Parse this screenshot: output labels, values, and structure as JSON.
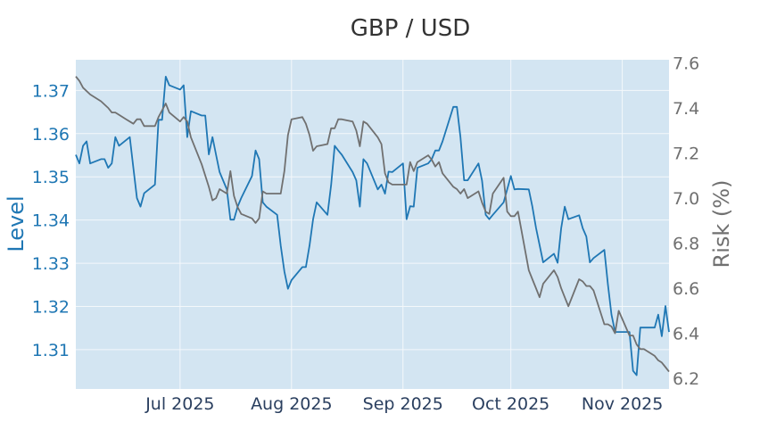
{
  "chart_data": {
    "type": "line",
    "title": "GBP / USD",
    "xlabel": "",
    "colors": {
      "plot_bg": "#d3e5f2",
      "grid": "#f4f8fb",
      "level": "#1f77b4",
      "risk": "#707070",
      "x_tick": "#2a3f5f"
    },
    "x_ticks": [
      "2025-07-01",
      "2025-08-01",
      "2025-09-01",
      "2025-10-01",
      "2025-11-01"
    ],
    "x_tick_labels": [
      "Jul 2025",
      "Aug 2025",
      "Sep 2025",
      "Oct 2025",
      "Nov 2025"
    ],
    "xlim": [
      "2025-06-02",
      "2025-11-14"
    ],
    "y_left": {
      "label": "Level",
      "ticks": [
        1.31,
        1.32,
        1.33,
        1.34,
        1.35,
        1.36,
        1.37
      ],
      "tick_labels": [
        "1.31",
        "1.32",
        "1.33",
        "1.34",
        "1.35",
        "1.36",
        "1.37"
      ],
      "range": [
        1.3009,
        1.3771
      ]
    },
    "y_right": {
      "label": "Risk (%)",
      "ticks": [
        6.2,
        6.4,
        6.6,
        6.8,
        7.0,
        7.2,
        7.4,
        7.6
      ],
      "tick_labels": [
        "6.2",
        "6.4",
        "6.6",
        "6.8",
        "7.0",
        "7.2",
        "7.4",
        "7.6"
      ],
      "range": [
        6.153,
        7.614
      ]
    },
    "series": [
      {
        "name": "Level",
        "axis": "left",
        "color": "#1f77b4",
        "points": [
          [
            "2025-06-02",
            1.3551
          ],
          [
            "2025-06-03",
            1.3531
          ],
          [
            "2025-06-04",
            1.3572
          ],
          [
            "2025-06-05",
            1.3582
          ],
          [
            "2025-06-06",
            1.3531
          ],
          [
            "2025-06-09",
            1.3541
          ],
          [
            "2025-06-10",
            1.3541
          ],
          [
            "2025-06-11",
            1.3521
          ],
          [
            "2025-06-12",
            1.3531
          ],
          [
            "2025-06-13",
            1.3592
          ],
          [
            "2025-06-14",
            1.3572
          ],
          [
            "2025-06-17",
            1.3592
          ],
          [
            "2025-06-18",
            1.3521
          ],
          [
            "2025-06-19",
            1.3451
          ],
          [
            "2025-06-20",
            1.3431
          ],
          [
            "2025-06-21",
            1.3462
          ],
          [
            "2025-06-24",
            1.3482
          ],
          [
            "2025-06-25",
            1.3632
          ],
          [
            "2025-06-26",
            1.3632
          ],
          [
            "2025-06-27",
            1.3732
          ],
          [
            "2025-06-28",
            1.3712
          ],
          [
            "2025-07-01",
            1.3702
          ],
          [
            "2025-07-02",
            1.3712
          ],
          [
            "2025-07-03",
            1.3592
          ],
          [
            "2025-07-04",
            1.3652
          ],
          [
            "2025-07-07",
            1.3642
          ],
          [
            "2025-07-08",
            1.3642
          ],
          [
            "2025-07-09",
            1.3552
          ],
          [
            "2025-07-10",
            1.3592
          ],
          [
            "2025-07-11",
            1.3551
          ],
          [
            "2025-07-12",
            1.3511
          ],
          [
            "2025-07-14",
            1.3471
          ],
          [
            "2025-07-15",
            1.3401
          ],
          [
            "2025-07-16",
            1.3401
          ],
          [
            "2025-07-17",
            1.3431
          ],
          [
            "2025-07-18",
            1.3451
          ],
          [
            "2025-07-21",
            1.3502
          ],
          [
            "2025-07-22",
            1.3561
          ],
          [
            "2025-07-23",
            1.3541
          ],
          [
            "2025-07-24",
            1.3441
          ],
          [
            "2025-07-25",
            1.3431
          ],
          [
            "2025-07-28",
            1.3412
          ],
          [
            "2025-07-29",
            1.3341
          ],
          [
            "2025-07-30",
            1.3281
          ],
          [
            "2025-07-31",
            1.3241
          ],
          [
            "2025-08-01",
            1.3261
          ],
          [
            "2025-08-04",
            1.3291
          ],
          [
            "2025-08-05",
            1.3291
          ],
          [
            "2025-08-06",
            1.3341
          ],
          [
            "2025-08-07",
            1.3402
          ],
          [
            "2025-08-08",
            1.3441
          ],
          [
            "2025-08-11",
            1.3412
          ],
          [
            "2025-08-12",
            1.3481
          ],
          [
            "2025-08-13",
            1.3572
          ],
          [
            "2025-08-14",
            1.3561
          ],
          [
            "2025-08-15",
            1.3551
          ],
          [
            "2025-08-18",
            1.3511
          ],
          [
            "2025-08-19",
            1.3492
          ],
          [
            "2025-08-20",
            1.3431
          ],
          [
            "2025-08-21",
            1.3541
          ],
          [
            "2025-08-22",
            1.3531
          ],
          [
            "2025-08-25",
            1.3471
          ],
          [
            "2025-08-26",
            1.3482
          ],
          [
            "2025-08-27",
            1.3461
          ],
          [
            "2025-08-28",
            1.3512
          ],
          [
            "2025-08-29",
            1.3511
          ],
          [
            "2025-09-01",
            1.3531
          ],
          [
            "2025-09-02",
            1.3402
          ],
          [
            "2025-09-03",
            1.3432
          ],
          [
            "2025-09-04",
            1.3431
          ],
          [
            "2025-09-05",
            1.3521
          ],
          [
            "2025-09-08",
            1.3531
          ],
          [
            "2025-09-09",
            1.3541
          ],
          [
            "2025-09-10",
            1.3561
          ],
          [
            "2025-09-11",
            1.3561
          ],
          [
            "2025-09-12",
            1.3582
          ],
          [
            "2025-09-15",
            1.3662
          ],
          [
            "2025-09-16",
            1.3662
          ],
          [
            "2025-09-17",
            1.3592
          ],
          [
            "2025-09-18",
            1.3492
          ],
          [
            "2025-09-19",
            1.3492
          ],
          [
            "2025-09-22",
            1.3531
          ],
          [
            "2025-09-23",
            1.3491
          ],
          [
            "2025-09-24",
            1.3412
          ],
          [
            "2025-09-25",
            1.3402
          ],
          [
            "2025-09-26",
            1.3412
          ],
          [
            "2025-09-29",
            1.3441
          ],
          [
            "2025-09-30",
            1.3471
          ],
          [
            "2025-10-01",
            1.3502
          ],
          [
            "2025-10-02",
            1.3471
          ],
          [
            "2025-10-03",
            1.3472
          ],
          [
            "2025-10-06",
            1.3471
          ],
          [
            "2025-10-07",
            1.3431
          ],
          [
            "2025-10-08",
            1.3382
          ],
          [
            "2025-10-09",
            1.3342
          ],
          [
            "2025-10-10",
            1.3302
          ],
          [
            "2025-10-13",
            1.3322
          ],
          [
            "2025-10-14",
            1.3301
          ],
          [
            "2025-10-15",
            1.3381
          ],
          [
            "2025-10-16",
            1.3431
          ],
          [
            "2025-10-17",
            1.3402
          ],
          [
            "2025-10-20",
            1.3411
          ],
          [
            "2025-10-21",
            1.3381
          ],
          [
            "2025-10-22",
            1.3362
          ],
          [
            "2025-10-23",
            1.3302
          ],
          [
            "2025-10-24",
            1.3312
          ],
          [
            "2025-10-27",
            1.3331
          ],
          [
            "2025-10-28",
            1.3251
          ],
          [
            "2025-10-29",
            1.3181
          ],
          [
            "2025-10-30",
            1.3141
          ],
          [
            "2025-10-31",
            1.3141
          ],
          [
            "2025-11-03",
            1.3141
          ],
          [
            "2025-11-04",
            1.3051
          ],
          [
            "2025-11-05",
            1.3041
          ],
          [
            "2025-11-06",
            1.3151
          ],
          [
            "2025-11-07",
            1.3151
          ],
          [
            "2025-11-10",
            1.3151
          ],
          [
            "2025-11-11",
            1.3181
          ],
          [
            "2025-11-12",
            1.3131
          ],
          [
            "2025-11-13",
            1.3201
          ],
          [
            "2025-11-14",
            1.3141
          ]
        ]
      },
      {
        "name": "Risk (%)",
        "axis": "right",
        "color": "#707070",
        "points": [
          [
            "2025-06-02",
            7.54
          ],
          [
            "2025-06-03",
            7.52
          ],
          [
            "2025-06-04",
            7.49
          ],
          [
            "2025-06-06",
            7.46
          ],
          [
            "2025-06-09",
            7.43
          ],
          [
            "2025-06-11",
            7.4
          ],
          [
            "2025-06-12",
            7.38
          ],
          [
            "2025-06-13",
            7.38
          ],
          [
            "2025-06-16",
            7.35
          ],
          [
            "2025-06-18",
            7.33
          ],
          [
            "2025-06-19",
            7.35
          ],
          [
            "2025-06-20",
            7.35
          ],
          [
            "2025-06-21",
            7.32
          ],
          [
            "2025-06-24",
            7.32
          ],
          [
            "2025-06-25",
            7.36
          ],
          [
            "2025-06-27",
            7.42
          ],
          [
            "2025-06-28",
            7.38
          ],
          [
            "2025-07-01",
            7.34
          ],
          [
            "2025-07-02",
            7.36
          ],
          [
            "2025-07-03",
            7.34
          ],
          [
            "2025-07-04",
            7.27
          ],
          [
            "2025-07-07",
            7.15
          ],
          [
            "2025-07-09",
            7.05
          ],
          [
            "2025-07-10",
            6.99
          ],
          [
            "2025-07-11",
            7.0
          ],
          [
            "2025-07-12",
            7.04
          ],
          [
            "2025-07-14",
            7.02
          ],
          [
            "2025-07-15",
            7.12
          ],
          [
            "2025-07-16",
            7.01
          ],
          [
            "2025-07-17",
            6.96
          ],
          [
            "2025-07-18",
            6.93
          ],
          [
            "2025-07-21",
            6.91
          ],
          [
            "2025-07-22",
            6.89
          ],
          [
            "2025-07-23",
            6.91
          ],
          [
            "2025-07-24",
            7.03
          ],
          [
            "2025-07-25",
            7.02
          ],
          [
            "2025-07-28",
            7.02
          ],
          [
            "2025-07-29",
            7.02
          ],
          [
            "2025-07-30",
            7.12
          ],
          [
            "2025-07-31",
            7.28
          ],
          [
            "2025-08-01",
            7.35
          ],
          [
            "2025-08-04",
            7.36
          ],
          [
            "2025-08-05",
            7.33
          ],
          [
            "2025-08-06",
            7.28
          ],
          [
            "2025-08-07",
            7.21
          ],
          [
            "2025-08-08",
            7.23
          ],
          [
            "2025-08-11",
            7.24
          ],
          [
            "2025-08-12",
            7.31
          ],
          [
            "2025-08-13",
            7.31
          ],
          [
            "2025-08-14",
            7.35
          ],
          [
            "2025-08-15",
            7.35
          ],
          [
            "2025-08-18",
            7.34
          ],
          [
            "2025-08-19",
            7.3
          ],
          [
            "2025-08-20",
            7.23
          ],
          [
            "2025-08-21",
            7.34
          ],
          [
            "2025-08-22",
            7.33
          ],
          [
            "2025-08-25",
            7.27
          ],
          [
            "2025-08-26",
            7.24
          ],
          [
            "2025-08-27",
            7.11
          ],
          [
            "2025-08-28",
            7.07
          ],
          [
            "2025-08-29",
            7.06
          ],
          [
            "2025-09-02",
            7.06
          ],
          [
            "2025-09-03",
            7.16
          ],
          [
            "2025-09-04",
            7.12
          ],
          [
            "2025-09-05",
            7.16
          ],
          [
            "2025-09-08",
            7.19
          ],
          [
            "2025-09-09",
            7.17
          ],
          [
            "2025-09-10",
            7.14
          ],
          [
            "2025-09-11",
            7.16
          ],
          [
            "2025-09-12",
            7.11
          ],
          [
            "2025-09-15",
            7.05
          ],
          [
            "2025-09-16",
            7.04
          ],
          [
            "2025-09-17",
            7.02
          ],
          [
            "2025-09-18",
            7.04
          ],
          [
            "2025-09-19",
            7.0
          ],
          [
            "2025-09-22",
            7.03
          ],
          [
            "2025-09-23",
            6.98
          ],
          [
            "2025-09-24",
            6.94
          ],
          [
            "2025-09-25",
            6.93
          ],
          [
            "2025-09-26",
            7.02
          ],
          [
            "2025-09-29",
            7.09
          ],
          [
            "2025-09-30",
            6.94
          ],
          [
            "2025-10-01",
            6.92
          ],
          [
            "2025-10-02",
            6.92
          ],
          [
            "2025-10-03",
            6.94
          ],
          [
            "2025-10-06",
            6.68
          ],
          [
            "2025-10-07",
            6.64
          ],
          [
            "2025-10-08",
            6.6
          ],
          [
            "2025-10-09",
            6.56
          ],
          [
            "2025-10-10",
            6.62
          ],
          [
            "2025-10-13",
            6.68
          ],
          [
            "2025-10-14",
            6.65
          ],
          [
            "2025-10-15",
            6.6
          ],
          [
            "2025-10-16",
            6.56
          ],
          [
            "2025-10-17",
            6.52
          ],
          [
            "2025-10-20",
            6.64
          ],
          [
            "2025-10-21",
            6.63
          ],
          [
            "2025-10-22",
            6.61
          ],
          [
            "2025-10-23",
            6.61
          ],
          [
            "2025-10-24",
            6.59
          ],
          [
            "2025-10-27",
            6.44
          ],
          [
            "2025-10-28",
            6.44
          ],
          [
            "2025-10-29",
            6.43
          ],
          [
            "2025-10-30",
            6.4
          ],
          [
            "2025-10-31",
            6.5
          ],
          [
            "2025-11-03",
            6.39
          ],
          [
            "2025-11-04",
            6.39
          ],
          [
            "2025-11-05",
            6.35
          ],
          [
            "2025-11-06",
            6.33
          ],
          [
            "2025-11-07",
            6.33
          ],
          [
            "2025-11-10",
            6.3
          ],
          [
            "2025-11-11",
            6.28
          ],
          [
            "2025-11-12",
            6.27
          ],
          [
            "2025-11-13",
            6.25
          ],
          [
            "2025-11-14",
            6.23
          ]
        ]
      }
    ]
  }
}
